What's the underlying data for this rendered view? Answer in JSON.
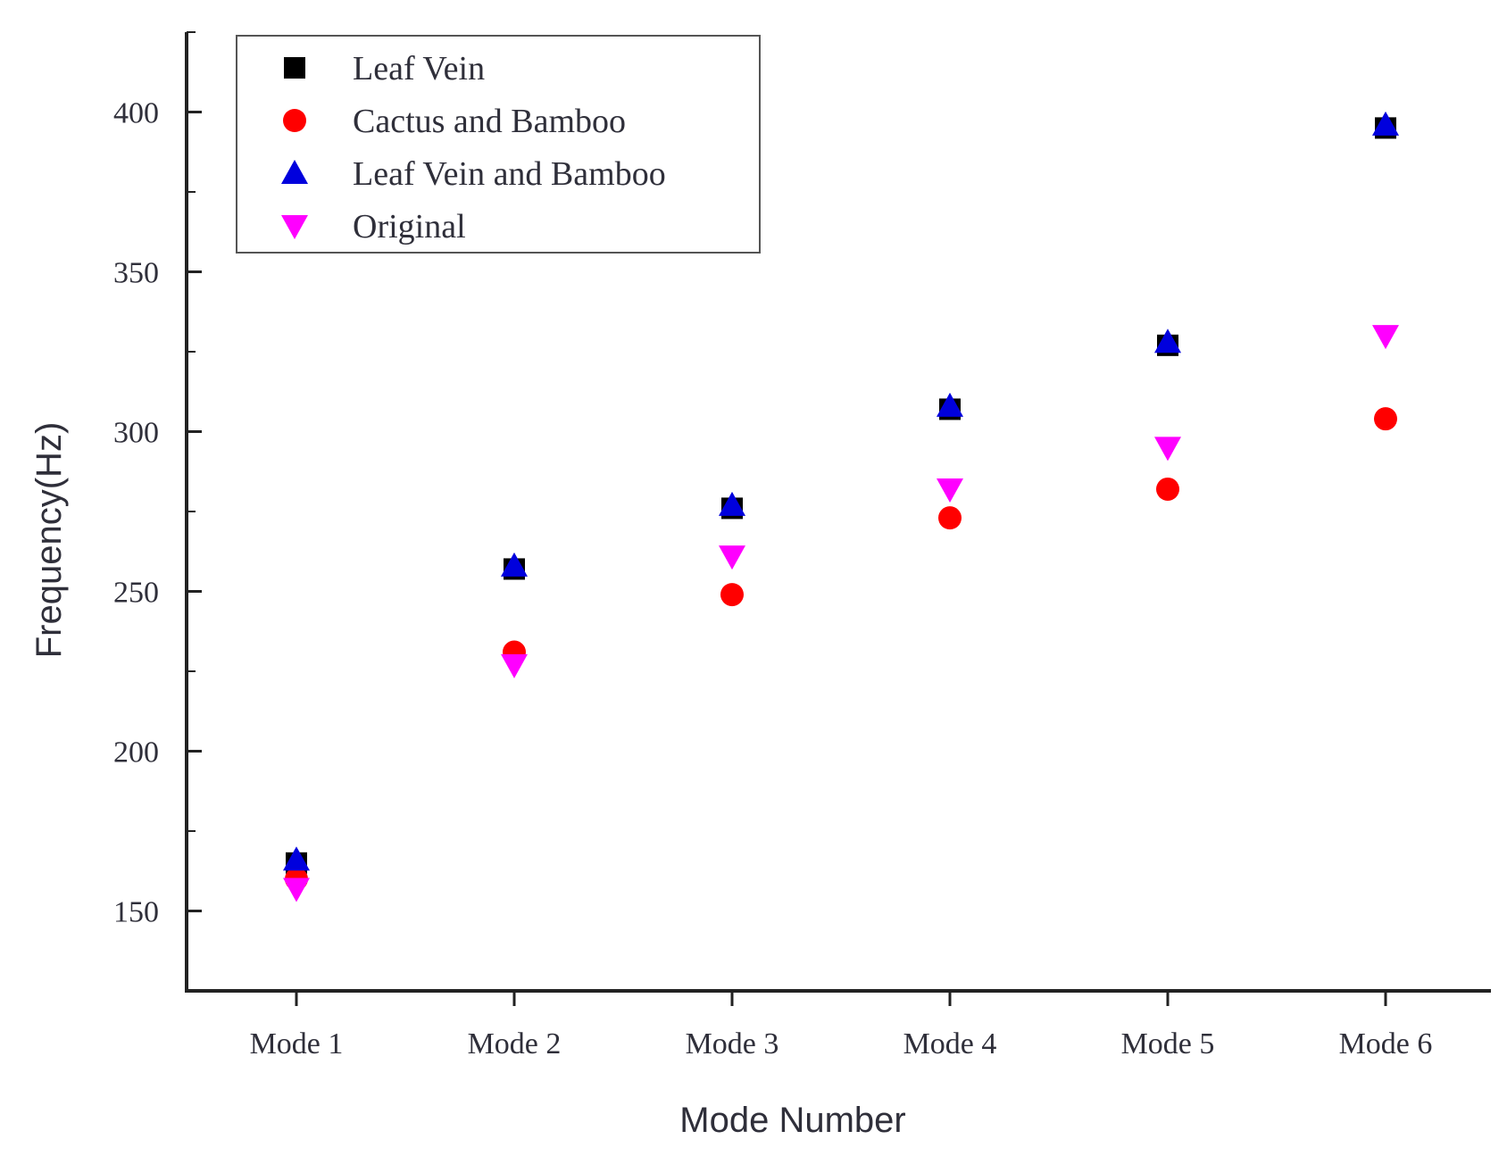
{
  "chart_data": {
    "type": "scatter",
    "title": "",
    "xlabel": "Mode Number",
    "ylabel": "Frequency(Hz)",
    "categories": [
      "Mode 1",
      "Mode 2",
      "Mode 3",
      "Mode 4",
      "Mode 5",
      "Mode 6"
    ],
    "yticks": [
      150,
      200,
      250,
      300,
      350,
      400
    ],
    "ylim": [
      125,
      425
    ],
    "grid": false,
    "legend_position": "top-left",
    "series": [
      {
        "name": "Leaf Vein",
        "marker": "square",
        "color": "#000000",
        "values": [
          165,
          257,
          276,
          307,
          327,
          395
        ]
      },
      {
        "name": "Cactus and Bamboo",
        "marker": "circle",
        "color": "#ff0000",
        "values": [
          160,
          231,
          249,
          273,
          282,
          304
        ]
      },
      {
        "name": "Leaf Vein and Bamboo",
        "marker": "triangle-up",
        "color": "#0000dd",
        "values": [
          166,
          258,
          277,
          308,
          328,
          396
        ]
      },
      {
        "name": "Original",
        "marker": "triangle-down",
        "color": "#ff00ff",
        "values": [
          157,
          227,
          261,
          282,
          295,
          330
        ]
      }
    ]
  }
}
